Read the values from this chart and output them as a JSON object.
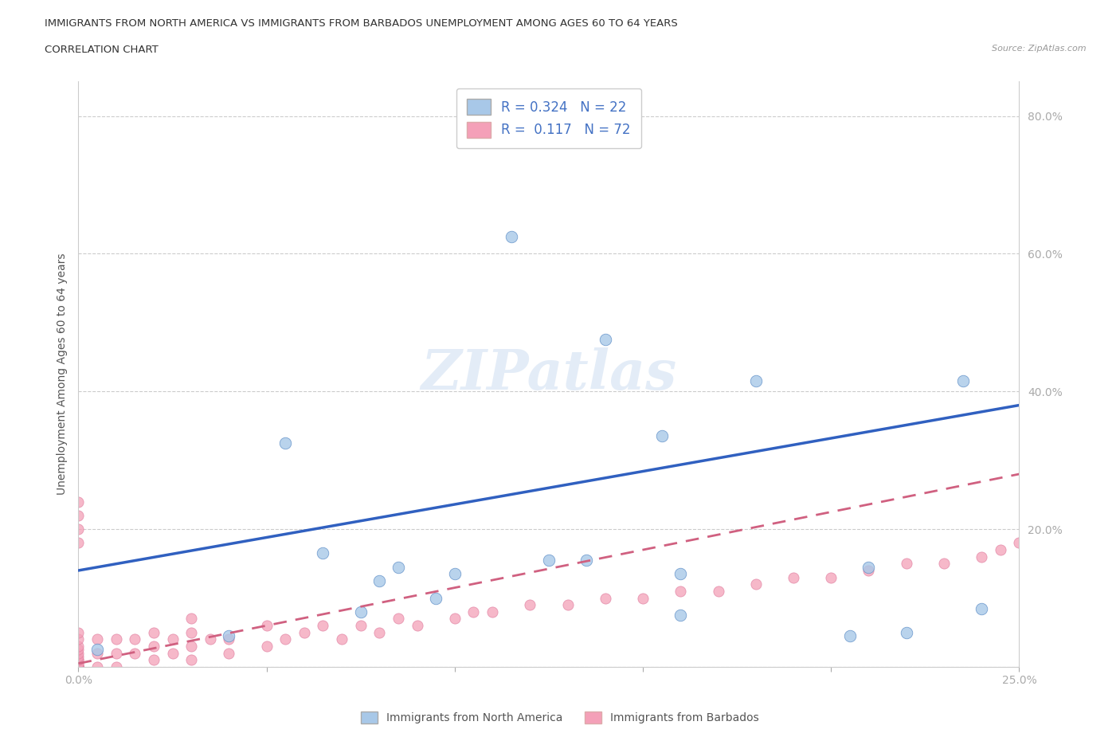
{
  "title_line1": "IMMIGRANTS FROM NORTH AMERICA VS IMMIGRANTS FROM BARBADOS UNEMPLOYMENT AMONG AGES 60 TO 64 YEARS",
  "title_line2": "CORRELATION CHART",
  "source_text": "Source: ZipAtlas.com",
  "ylabel": "Unemployment Among Ages 60 to 64 years",
  "xlim": [
    0.0,
    0.25
  ],
  "ylim": [
    0.0,
    0.85
  ],
  "r_north_america": 0.324,
  "n_north_america": 22,
  "r_barbados": 0.117,
  "n_barbados": 72,
  "color_north_america": "#a8c8e8",
  "color_barbados": "#f4a0b8",
  "line_color_north_america": "#3060c0",
  "line_color_barbados": "#d06080",
  "na_x": [
    0.005,
    0.04,
    0.055,
    0.065,
    0.075,
    0.085,
    0.095,
    0.1,
    0.115,
    0.125,
    0.135,
    0.14,
    0.155,
    0.16,
    0.18,
    0.205,
    0.21,
    0.22,
    0.235,
    0.24,
    0.08,
    0.16
  ],
  "na_y": [
    0.025,
    0.045,
    0.325,
    0.165,
    0.08,
    0.145,
    0.1,
    0.135,
    0.625,
    0.155,
    0.155,
    0.475,
    0.335,
    0.135,
    0.415,
    0.045,
    0.145,
    0.05,
    0.415,
    0.085,
    0.125,
    0.075
  ],
  "b_x": [
    0.0,
    0.0,
    0.0,
    0.0,
    0.0,
    0.0,
    0.0,
    0.0,
    0.0,
    0.0,
    0.0,
    0.0,
    0.0,
    0.0,
    0.0,
    0.0,
    0.0,
    0.0,
    0.0,
    0.0,
    0.005,
    0.005,
    0.005,
    0.01,
    0.01,
    0.01,
    0.015,
    0.015,
    0.02,
    0.02,
    0.02,
    0.025,
    0.025,
    0.03,
    0.03,
    0.03,
    0.03,
    0.035,
    0.04,
    0.04,
    0.05,
    0.05,
    0.055,
    0.06,
    0.065,
    0.07,
    0.075,
    0.08,
    0.085,
    0.09,
    0.1,
    0.105,
    0.11,
    0.12,
    0.13,
    0.14,
    0.15,
    0.16,
    0.17,
    0.18,
    0.19,
    0.2,
    0.21,
    0.22,
    0.23,
    0.24,
    0.245,
    0.25,
    0.0,
    0.0,
    0.0,
    0.0
  ],
  "b_y": [
    0.0,
    0.0,
    0.0,
    0.0,
    0.0,
    0.0,
    0.0,
    0.0,
    0.0,
    0.0,
    0.005,
    0.005,
    0.01,
    0.01,
    0.015,
    0.02,
    0.025,
    0.03,
    0.04,
    0.05,
    0.0,
    0.02,
    0.04,
    0.0,
    0.02,
    0.04,
    0.02,
    0.04,
    0.01,
    0.03,
    0.05,
    0.02,
    0.04,
    0.01,
    0.03,
    0.05,
    0.07,
    0.04,
    0.02,
    0.04,
    0.03,
    0.06,
    0.04,
    0.05,
    0.06,
    0.04,
    0.06,
    0.05,
    0.07,
    0.06,
    0.07,
    0.08,
    0.08,
    0.09,
    0.09,
    0.1,
    0.1,
    0.11,
    0.11,
    0.12,
    0.13,
    0.13,
    0.14,
    0.15,
    0.15,
    0.16,
    0.17,
    0.18,
    0.2,
    0.22,
    0.18,
    0.24
  ],
  "na_trend_x": [
    0.0,
    0.25
  ],
  "na_trend_y": [
    0.14,
    0.38
  ],
  "b_trend_x": [
    0.0,
    0.25
  ],
  "b_trend_y": [
    0.005,
    0.28
  ]
}
